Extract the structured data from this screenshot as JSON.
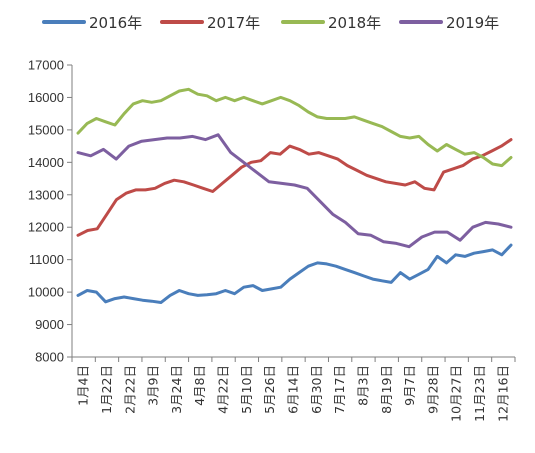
{
  "chart_data": {
    "type": "line",
    "title": "",
    "xlabel": "",
    "ylabel": "",
    "ylim": [
      8000,
      17000
    ],
    "yticks": [
      "8000",
      "9000",
      "10000",
      "11000",
      "12000",
      "13000",
      "14000",
      "15000",
      "16000",
      "17000"
    ],
    "x_ticks": [
      "1月4日",
      "1月22日",
      "2月22日",
      "3月9日",
      "3月24日",
      "4月8日",
      "4月22日",
      "5月10日",
      "5月26日",
      "6月14日",
      "6月30日",
      "7月17日",
      "8月3日",
      "8月19日",
      "9月7日",
      "9月28日",
      "10月27日",
      "11月23日",
      "12月16日"
    ],
    "grid": false,
    "legend_position": "top",
    "series": [
      {
        "name": "2016年",
        "color": "#4a7ebb",
        "values": [
          9900,
          10050,
          10000,
          9700,
          9800,
          9850,
          9800,
          9750,
          9720,
          9680,
          9900,
          10050,
          9950,
          9900,
          9920,
          9950,
          10050,
          9950,
          10150,
          10200,
          10050,
          10100,
          10150,
          10400,
          10600,
          10800,
          10900,
          10870,
          10800,
          10700,
          10600,
          10500,
          10400,
          10350,
          10300,
          10600,
          10400,
          10550,
          10700,
          11100,
          10900,
          11150,
          11100,
          11200,
          11250,
          11300,
          11150,
          11450
        ]
      },
      {
        "name": "2017年",
        "color": "#be4b48",
        "values": [
          11750,
          11900,
          11950,
          12400,
          12850,
          13050,
          13150,
          13150,
          13200,
          13350,
          13450,
          13400,
          13300,
          13200,
          13100,
          13350,
          13600,
          13850,
          14000,
          14050,
          14300,
          14250,
          14500,
          14400,
          14250,
          14300,
          14200,
          14100,
          13900,
          13750,
          13600,
          13500,
          13400,
          13350,
          13300,
          13400,
          13200,
          13150,
          13700,
          13800,
          13900,
          14100,
          14200,
          14350,
          14500,
          14700
        ]
      },
      {
        "name": "2018年",
        "color": "#98b954",
        "values": [
          14900,
          15200,
          15350,
          15250,
          15150,
          15500,
          15800,
          15900,
          15850,
          15900,
          16050,
          16200,
          16250,
          16100,
          16050,
          15900,
          16000,
          15900,
          16000,
          15900,
          15800,
          15900,
          16000,
          15900,
          15750,
          15550,
          15400,
          15350,
          15350,
          15350,
          15400,
          15300,
          15200,
          15100,
          14950,
          14800,
          14750,
          14800,
          14550,
          14350,
          14550,
          14400,
          14250,
          14300,
          14150,
          13950,
          13900,
          14150
        ]
      },
      {
        "name": "2019年",
        "color": "#7d5fa0",
        "values": [
          14300,
          14200,
          14400,
          14100,
          14500,
          14650,
          14700,
          14750,
          14750,
          14800,
          14700,
          14850,
          14300,
          14000,
          13700,
          13400,
          13350,
          13300,
          13200,
          12800,
          12400,
          12150,
          11800,
          11750,
          11550,
          11500,
          11400,
          11700,
          11850,
          11850,
          11600,
          12000,
          12150,
          12100,
          12000
        ]
      }
    ]
  }
}
